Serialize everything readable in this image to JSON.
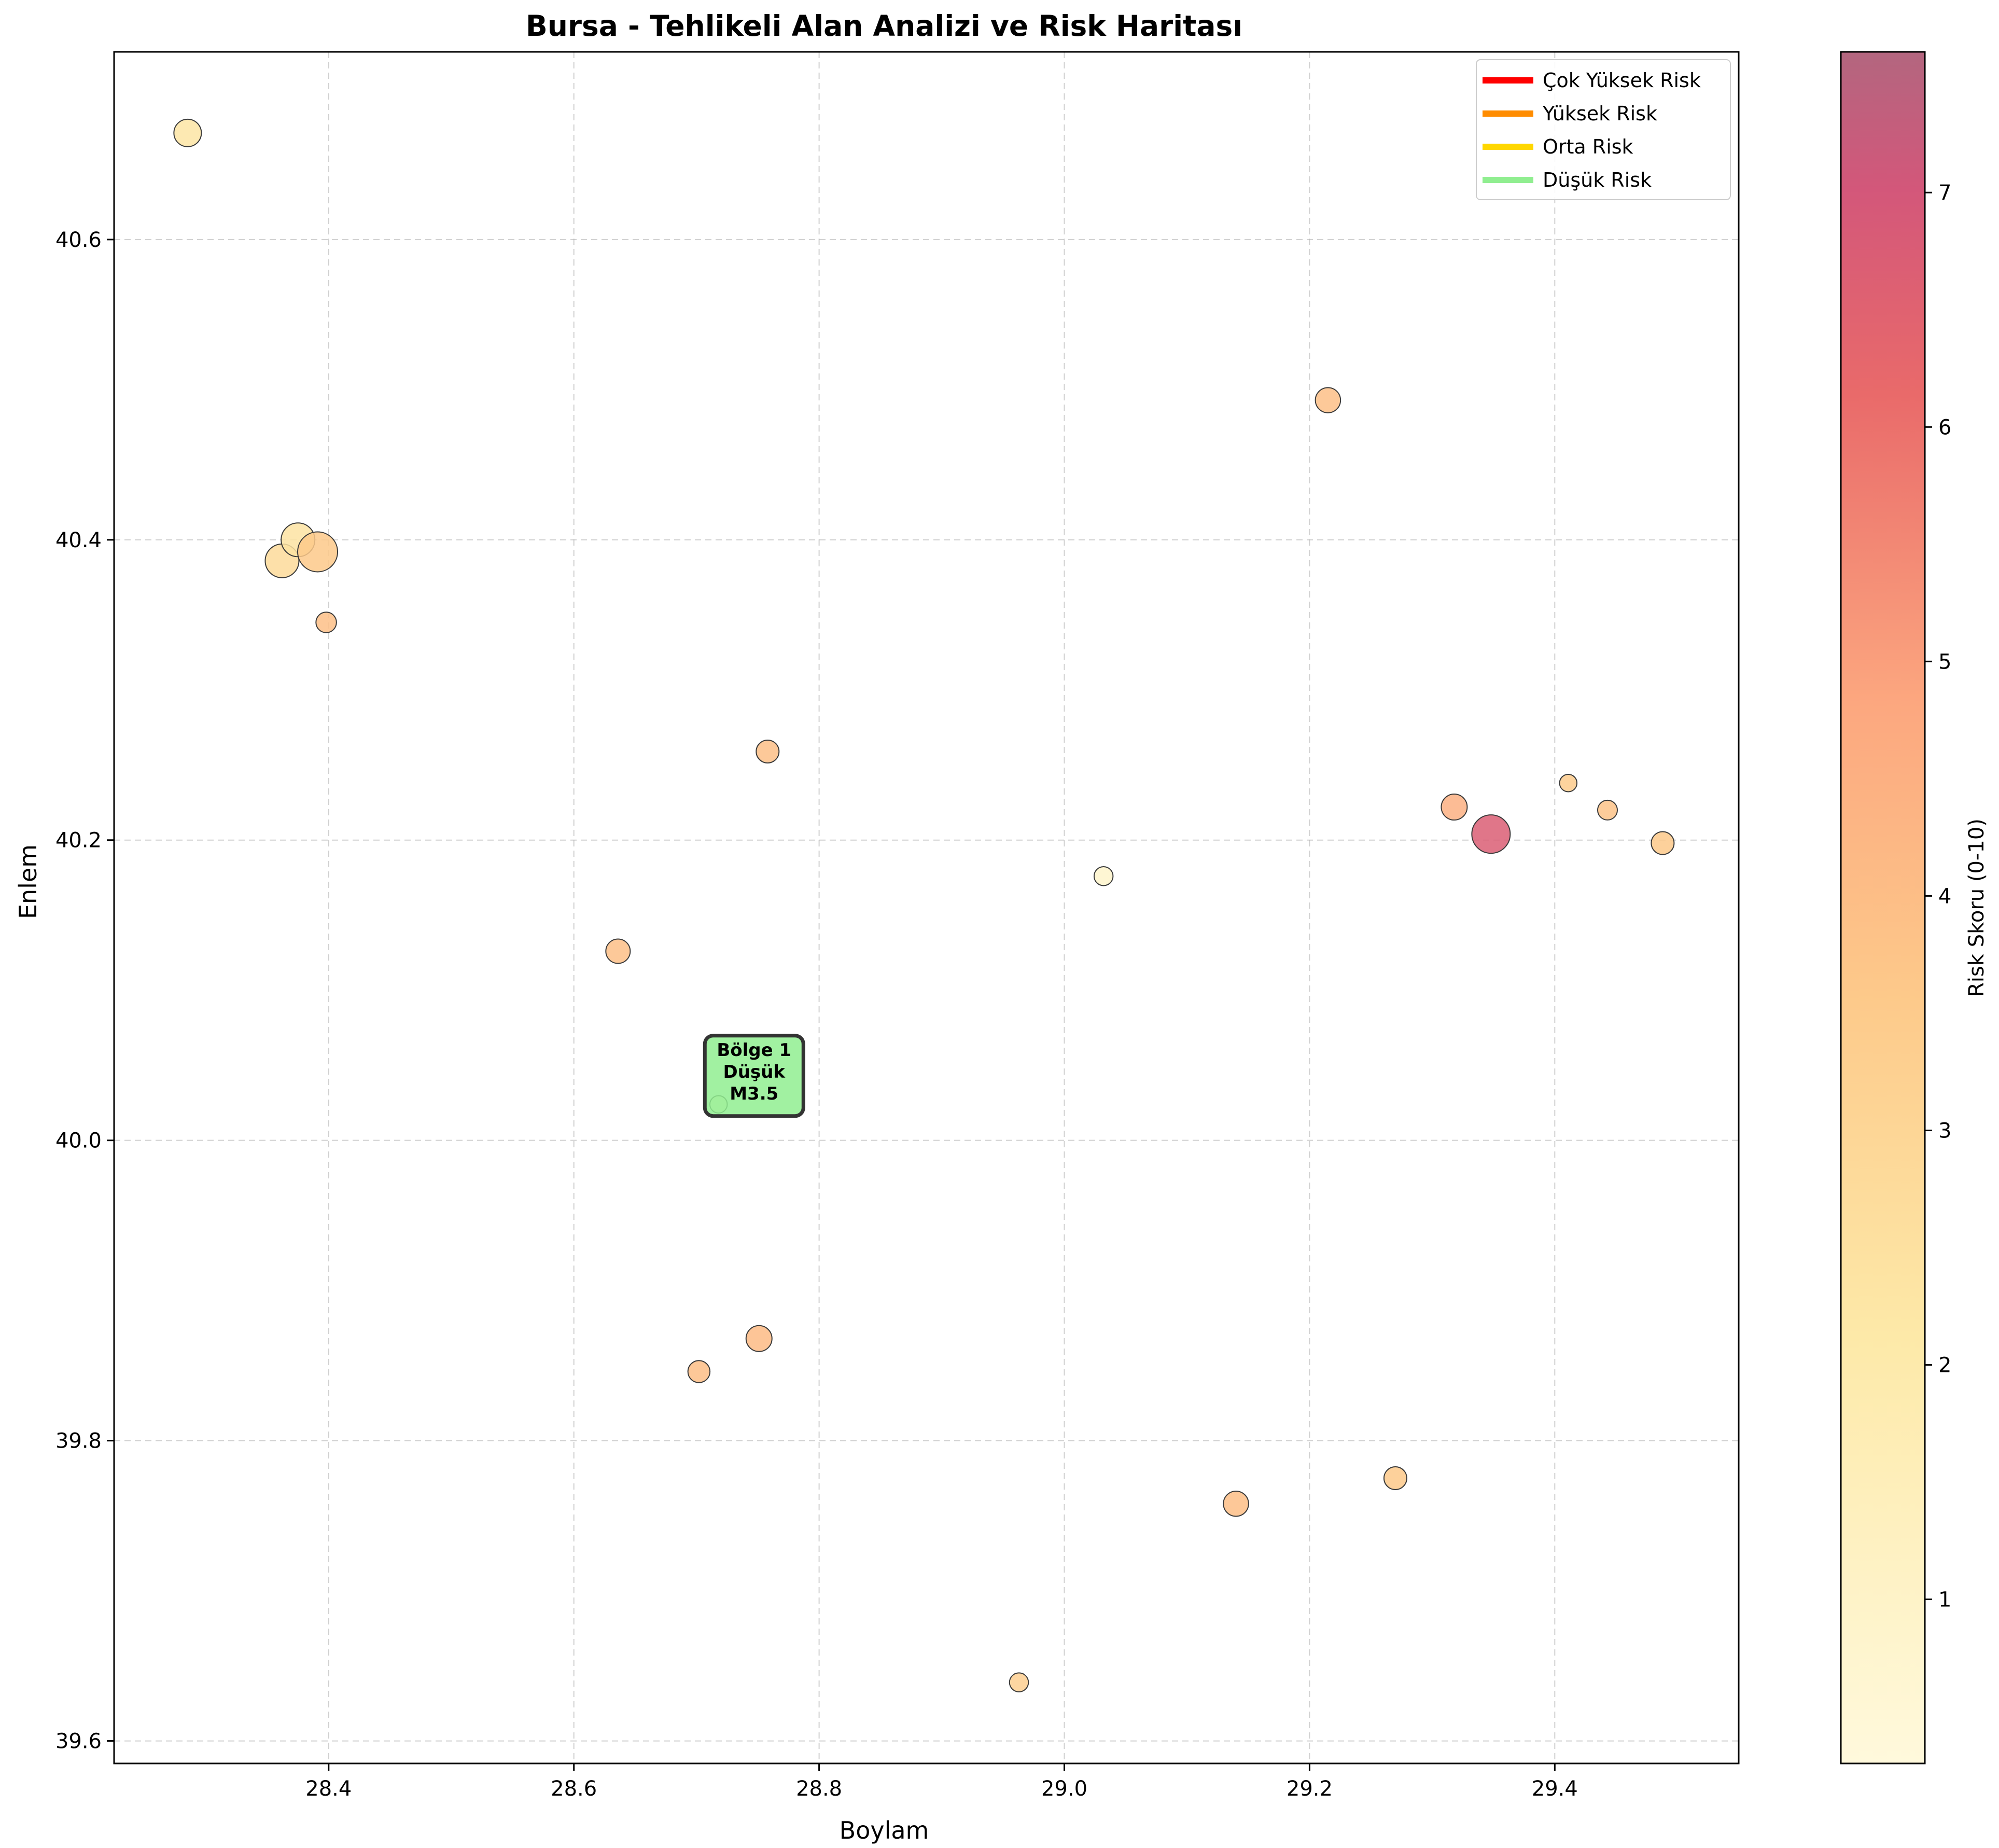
{
  "chart_data": {
    "type": "scatter",
    "title": "Bursa - Tehlikeli Alan Analizi ve Risk Haritası",
    "xlabel": "Boylam",
    "ylabel": "Enlem",
    "xlim": [
      28.225,
      29.55
    ],
    "ylim": [
      39.585,
      40.725
    ],
    "xticks": [
      28.4,
      28.6,
      28.8,
      29.0,
      29.2,
      29.4
    ],
    "xtick_labels": [
      "28.4",
      "28.6",
      "28.8",
      "29.0",
      "29.2",
      "29.4"
    ],
    "yticks": [
      39.6,
      39.8,
      40.0,
      40.2,
      40.4,
      40.6
    ],
    "ytick_labels": [
      "39.6",
      "39.8",
      "40.0",
      "40.2",
      "40.4",
      "40.6"
    ],
    "grid": true,
    "colormap": "YlOrRd",
    "colorbar": {
      "label": "Risk Skoru (0-10)",
      "range": [
        0.3,
        7.6
      ],
      "ticks": [
        1,
        2,
        3,
        4,
        5,
        6,
        7
      ],
      "tick_labels": [
        "1",
        "2",
        "3",
        "4",
        "5",
        "6",
        "7"
      ]
    },
    "legend": {
      "placement": "top-right",
      "entries": [
        {
          "label": "Çok Yüksek Risk",
          "color": "#ff0000"
        },
        {
          "label": "Yüksek Risk",
          "color": "#ff8c00"
        },
        {
          "label": "Orta Risk",
          "color": "#ffd700"
        },
        {
          "label": "Düşük Risk",
          "color": "#90ee90"
        }
      ]
    },
    "points": [
      {
        "x": 28.285,
        "y": 40.671,
        "risk": 2.3,
        "size": 2.2
      },
      {
        "x": 28.362,
        "y": 40.386,
        "risk": 2.8,
        "size": 3.0
      },
      {
        "x": 28.375,
        "y": 40.4,
        "risk": 2.4,
        "size": 3.0
      },
      {
        "x": 28.391,
        "y": 40.392,
        "risk": 3.6,
        "size": 3.8
      },
      {
        "x": 28.398,
        "y": 40.345,
        "risk": 3.9,
        "size": 1.3
      },
      {
        "x": 28.758,
        "y": 40.259,
        "risk": 3.9,
        "size": 1.6
      },
      {
        "x": 29.215,
        "y": 40.493,
        "risk": 3.9,
        "size": 1.9
      },
      {
        "x": 29.318,
        "y": 40.222,
        "risk": 4.5,
        "size": 2.0
      },
      {
        "x": 29.348,
        "y": 40.204,
        "risk": 6.7,
        "size": 3.6
      },
      {
        "x": 29.411,
        "y": 40.238,
        "risk": 3.5,
        "size": 0.9
      },
      {
        "x": 29.443,
        "y": 40.22,
        "risk": 3.8,
        "size": 1.2
      },
      {
        "x": 29.488,
        "y": 40.198,
        "risk": 3.6,
        "size": 1.6
      },
      {
        "x": 29.032,
        "y": 40.176,
        "risk": 0.9,
        "size": 1.1
      },
      {
        "x": 28.636,
        "y": 40.126,
        "risk": 3.9,
        "size": 1.8
      },
      {
        "x": 28.718,
        "y": 40.024,
        "risk": 0.6,
        "size": 0.9
      },
      {
        "x": 28.751,
        "y": 39.868,
        "risk": 4.1,
        "size": 2.0
      },
      {
        "x": 28.702,
        "y": 39.846,
        "risk": 4.0,
        "size": 1.5
      },
      {
        "x": 29.14,
        "y": 39.758,
        "risk": 4.0,
        "size": 1.9
      },
      {
        "x": 29.27,
        "y": 39.775,
        "risk": 3.6,
        "size": 1.6
      },
      {
        "x": 28.963,
        "y": 39.639,
        "risk": 3.3,
        "size": 1.1
      }
    ],
    "annotations": [
      {
        "lines": [
          "Bölge 1",
          "Düşük",
          "M3.5"
        ],
        "x": 28.747,
        "y": 40.043,
        "bg": "#90ee90"
      }
    ]
  }
}
